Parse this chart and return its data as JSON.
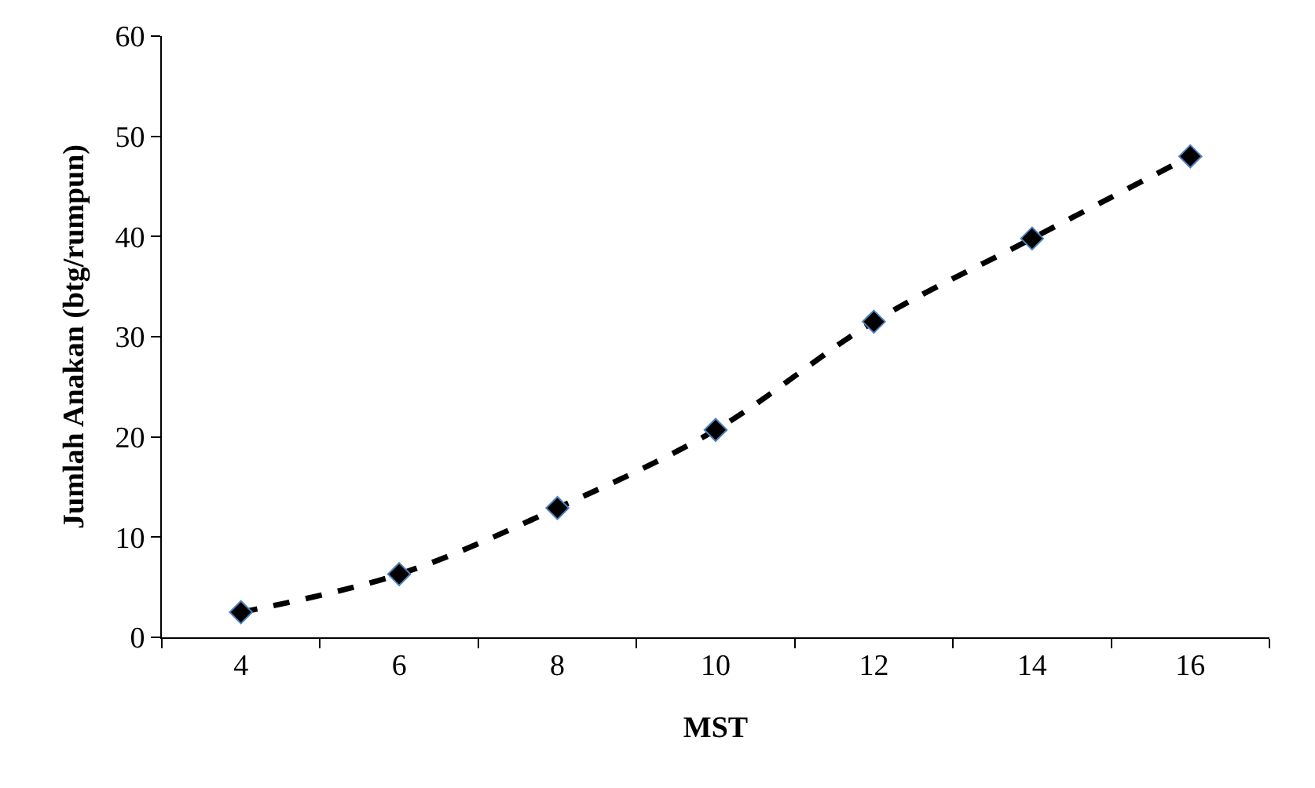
{
  "chart_data": {
    "type": "line",
    "xlabel": "MST",
    "ylabel": "Jumlah Anakan (btg/rumpun)",
    "categories": [
      "4",
      "6",
      "8",
      "10",
      "12",
      "14",
      "16"
    ],
    "series": [
      {
        "color": "#000000",
        "values": [
          2.5,
          6.3,
          12.9,
          20.7,
          31.5,
          39.8,
          48.0
        ]
      }
    ],
    "ylim": [
      0,
      60
    ],
    "yticks": [
      0,
      10,
      20,
      30,
      40,
      50,
      60
    ],
    "grid": false,
    "legend": false,
    "marker": "diamond",
    "line_style": "dashed"
  }
}
